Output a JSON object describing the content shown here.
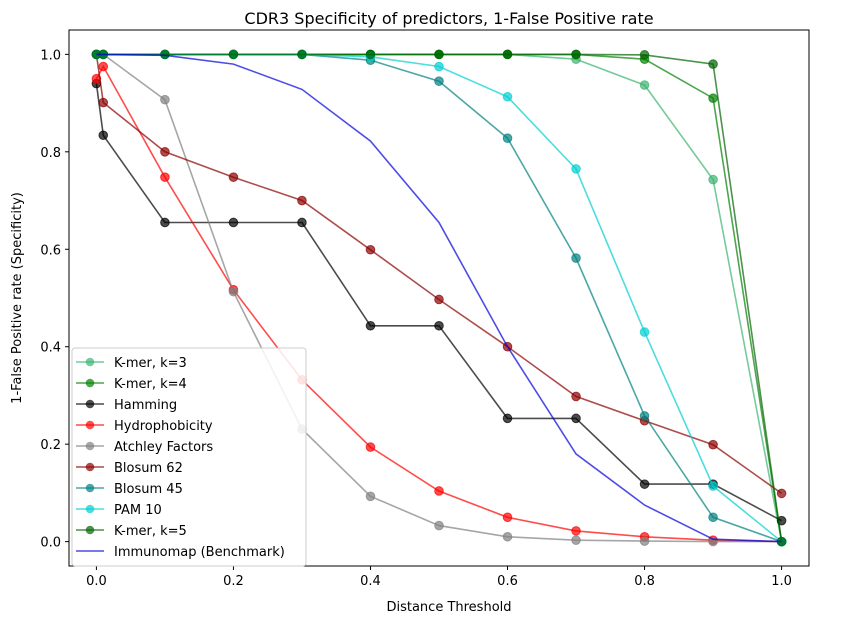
{
  "chart_data": {
    "type": "line",
    "title": "CDR3 Specificity of predictors, 1-False Positive rate",
    "xlabel": "Distance Threshold",
    "ylabel": "1-False Positive rate (Specificity)",
    "xlim": [
      -0.04,
      1.04
    ],
    "ylim": [
      -0.05,
      1.05
    ],
    "xticks": [
      "0.0",
      "0.2",
      "0.4",
      "0.6",
      "0.8",
      "1.0"
    ],
    "xtick_values": [
      0.0,
      0.2,
      0.4,
      0.6,
      0.8,
      1.0
    ],
    "yticks": [
      "0.0",
      "0.2",
      "0.4",
      "0.6",
      "0.8",
      "1.0"
    ],
    "ytick_values": [
      0.0,
      0.2,
      0.4,
      0.6,
      0.8,
      1.0
    ],
    "legend_position": "bottom-left",
    "grid": false,
    "series": [
      {
        "name": "K-mer, k=3",
        "color": "#3cb371",
        "opacity": 0.7,
        "marker": true,
        "x": [
          0.0,
          0.01,
          0.1,
          0.2,
          0.3,
          0.4,
          0.5,
          0.6,
          0.7,
          0.8,
          0.9,
          1.0
        ],
        "y": [
          1.0,
          1.0,
          1.0,
          1.0,
          1.0,
          1.0,
          1.0,
          1.0,
          0.99,
          0.937,
          0.743,
          0.0
        ]
      },
      {
        "name": "K-mer, k=4",
        "color": "#008000",
        "opacity": 0.7,
        "marker": true,
        "x": [
          0.0,
          0.01,
          0.1,
          0.2,
          0.3,
          0.4,
          0.5,
          0.6,
          0.7,
          0.8,
          0.9,
          1.0
        ],
        "y": [
          1.0,
          1.0,
          1.0,
          1.0,
          1.0,
          1.0,
          1.0,
          1.0,
          1.0,
          0.99,
          0.91,
          0.0
        ]
      },
      {
        "name": "Hamming",
        "color": "#000000",
        "opacity": 0.7,
        "marker": true,
        "x": [
          0.0,
          0.01,
          0.1,
          0.2,
          0.3,
          0.4,
          0.5,
          0.6,
          0.7,
          0.8,
          0.9,
          1.0
        ],
        "y": [
          0.94,
          0.834,
          0.655,
          0.655,
          0.655,
          0.443,
          0.443,
          0.253,
          0.253,
          0.118,
          0.118,
          0.043
        ]
      },
      {
        "name": "Hydrophobicity",
        "color": "#ff0000",
        "opacity": 0.7,
        "marker": true,
        "x": [
          0.0,
          0.01,
          0.1,
          0.2,
          0.3,
          0.4,
          0.5,
          0.6,
          0.7,
          0.8,
          0.9,
          1.0
        ],
        "y": [
          0.95,
          0.975,
          0.748,
          0.517,
          0.332,
          0.194,
          0.104,
          0.05,
          0.022,
          0.01,
          0.003,
          0.0
        ]
      },
      {
        "name": "Atchley Factors",
        "color": "#808080",
        "opacity": 0.7,
        "marker": true,
        "x": [
          0.0,
          0.01,
          0.1,
          0.2,
          0.3,
          0.4,
          0.5,
          0.6,
          0.7,
          0.8,
          0.9,
          1.0
        ],
        "y": [
          1.0,
          1.0,
          0.907,
          0.513,
          0.231,
          0.093,
          0.033,
          0.01,
          0.003,
          0.001,
          0.0,
          0.0
        ]
      },
      {
        "name": "Blosum 62",
        "color": "#8b0000",
        "opacity": 0.7,
        "marker": true,
        "x": [
          0.0,
          0.01,
          0.1,
          0.2,
          0.3,
          0.4,
          0.5,
          0.6,
          0.7,
          0.8,
          0.9,
          1.0
        ],
        "y": [
          1.0,
          0.901,
          0.8,
          0.748,
          0.7,
          0.599,
          0.497,
          0.4,
          0.298,
          0.248,
          0.199,
          0.099
        ]
      },
      {
        "name": "Blosum 45",
        "color": "#008080",
        "opacity": 0.7,
        "marker": true,
        "x": [
          0.0,
          0.01,
          0.1,
          0.2,
          0.3,
          0.4,
          0.5,
          0.6,
          0.7,
          0.8,
          0.9,
          1.0
        ],
        "y": [
          1.0,
          1.0,
          1.0,
          1.0,
          1.0,
          0.988,
          0.945,
          0.828,
          0.582,
          0.258,
          0.05,
          0.0
        ]
      },
      {
        "name": "PAM 10",
        "color": "#00ced1",
        "opacity": 0.7,
        "marker": true,
        "x": [
          0.0,
          0.01,
          0.1,
          0.2,
          0.3,
          0.4,
          0.5,
          0.6,
          0.7,
          0.8,
          0.9,
          1.0
        ],
        "y": [
          1.0,
          1.0,
          1.0,
          1.0,
          1.0,
          0.995,
          0.975,
          0.913,
          0.765,
          0.43,
          0.114,
          0.0
        ]
      },
      {
        "name": "K-mer, k=5",
        "color": "#006400",
        "opacity": 0.7,
        "marker": true,
        "x": [
          0.0,
          0.01,
          0.1,
          0.2,
          0.3,
          0.4,
          0.5,
          0.6,
          0.7,
          0.8,
          0.9,
          1.0
        ],
        "y": [
          1.0,
          1.0,
          1.0,
          1.0,
          1.0,
          1.0,
          1.0,
          1.0,
          1.0,
          0.999,
          0.98,
          0.0
        ]
      },
      {
        "name": "Immunomap (Benchmark)",
        "color": "#0000dd",
        "opacity": 0.7,
        "marker": false,
        "x": [
          0.0,
          0.1,
          0.2,
          0.3,
          0.4,
          0.5,
          0.6,
          0.7,
          0.8,
          0.9,
          1.0
        ],
        "y": [
          1.0,
          0.998,
          0.98,
          0.928,
          0.822,
          0.655,
          0.4,
          0.18,
          0.075,
          0.005,
          0.0
        ]
      }
    ]
  }
}
